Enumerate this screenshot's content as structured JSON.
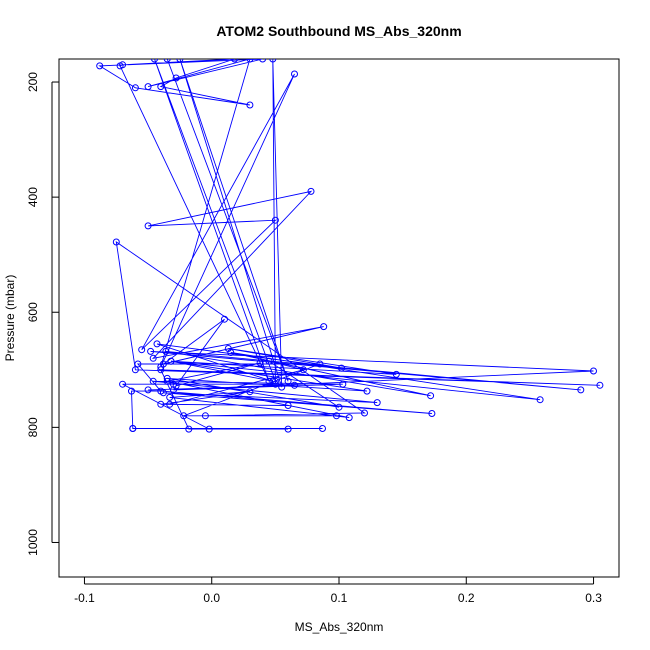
{
  "chart_data": {
    "type": "scatter",
    "title": "ATOM2 Southbound MS_Abs_320nm",
    "xlabel": "MS_Abs_320nm",
    "ylabel": "Pressure (mbar)",
    "xlim": [
      -0.12,
      0.32
    ],
    "ylim": [
      1060,
      160
    ],
    "y_reversed": true,
    "grid": false,
    "legend": "none",
    "xticks": [
      -0.1,
      0.0,
      0.1,
      0.2,
      0.3
    ],
    "xtick_labels": [
      "-0.1",
      "0.0",
      "0.1",
      "0.2",
      "0.3"
    ],
    "yticks": [
      200,
      400,
      600,
      800,
      1000
    ],
    "ytick_labels": [
      "200",
      "400",
      "600",
      "800",
      "1000"
    ],
    "series": [
      {
        "color": "#0000ff",
        "style": "line+points",
        "points": [
          [
            -0.062,
            802
          ],
          [
            0.087,
            802
          ],
          [
            -0.062,
            802
          ],
          [
            -0.063,
            737
          ],
          [
            -0.04,
            737
          ],
          [
            -0.058,
            690
          ],
          [
            0.085,
            690
          ],
          [
            -0.022,
            780
          ],
          [
            0.098,
            780
          ],
          [
            -0.005,
            780
          ],
          [
            0.12,
            775
          ],
          [
            -0.075,
            478
          ],
          [
            -0.06,
            700
          ],
          [
            0.305,
            727
          ],
          [
            -0.04,
            700
          ],
          [
            -0.018,
            803
          ],
          [
            0.06,
            803
          ],
          [
            -0.002,
            803
          ],
          [
            -0.07,
            725
          ],
          [
            -0.03,
            725
          ],
          [
            0.05,
            725
          ],
          [
            0.065,
            727
          ],
          [
            -0.05,
            735
          ],
          [
            0.173,
            776
          ],
          [
            -0.038,
            740
          ],
          [
            0.13,
            757
          ],
          [
            -0.046,
            720
          ],
          [
            0.103,
            725
          ],
          [
            -0.03,
            735
          ],
          [
            0.3,
            702
          ],
          [
            -0.048,
            668
          ],
          [
            0.29,
            735
          ],
          [
            -0.036,
            668
          ],
          [
            0.172,
            745
          ],
          [
            0.015,
            670
          ],
          [
            0.258,
            752
          ],
          [
            -0.032,
            685
          ],
          [
            0.145,
            708
          ],
          [
            0.013,
            663
          ],
          [
            0.102,
            697
          ],
          [
            -0.043,
            655
          ],
          [
            0.048,
            720
          ],
          [
            -0.032,
            685
          ],
          [
            0.122,
            737
          ],
          [
            -0.035,
            715
          ],
          [
            0.1,
            765
          ],
          [
            0.045,
            685
          ],
          [
            0.072,
            700
          ],
          [
            -0.033,
            760
          ],
          [
            0.06,
            762
          ],
          [
            -0.04,
            760
          ],
          [
            0.03,
            738
          ],
          [
            -0.033,
            748
          ],
          [
            0.108,
            783
          ],
          [
            -0.035,
            720
          ],
          [
            0.038,
            688
          ],
          [
            -0.028,
            728
          ],
          [
            0.01,
            612
          ],
          [
            -0.038,
            690
          ],
          [
            0.088,
            625
          ],
          [
            -0.046,
            680
          ],
          [
            0.078,
            390
          ],
          [
            -0.05,
            450
          ],
          [
            0.05,
            440
          ],
          [
            -0.055,
            665
          ],
          [
            0.065,
            186
          ],
          [
            -0.04,
            695
          ],
          [
            0.03,
            160
          ],
          [
            -0.05,
            208
          ],
          [
            0.04,
            160
          ],
          [
            -0.088,
            172
          ],
          [
            -0.06,
            210
          ],
          [
            0.03,
            240
          ],
          [
            -0.04,
            208
          ],
          [
            -0.028,
            193
          ],
          [
            0.018,
            160
          ],
          [
            -0.07,
            170
          ],
          [
            -0.072,
            172
          ],
          [
            0.045,
            720
          ],
          [
            -0.045,
            160
          ],
          [
            0.05,
            720
          ],
          [
            0.048,
            160
          ],
          [
            0.055,
            730
          ],
          [
            -0.025,
            160
          ],
          [
            0.06,
            720
          ],
          [
            -0.035,
            160
          ]
        ]
      }
    ]
  }
}
